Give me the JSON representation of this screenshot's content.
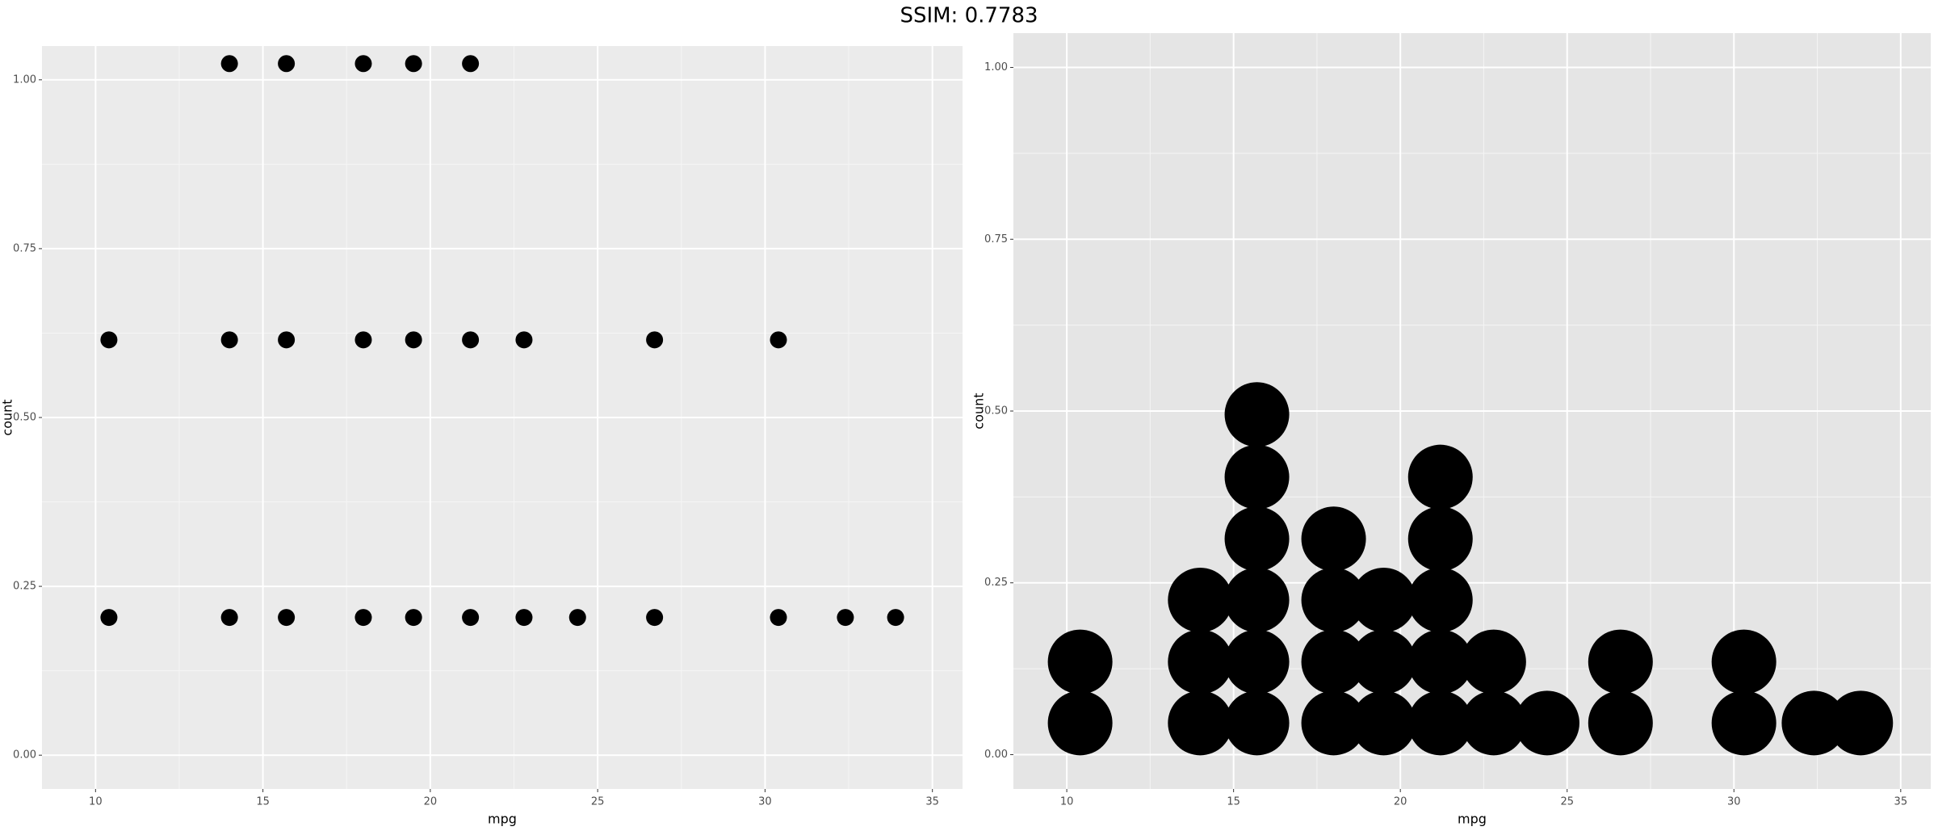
{
  "title": "SSIM: 0.7783",
  "chart_data": [
    {
      "type": "scatter",
      "x_label": "mpg",
      "y_label": "count",
      "color": "#000000",
      "x": [
        14.0,
        15.7,
        18.0,
        19.5,
        21.2,
        10.4,
        14.0,
        15.7,
        18.0,
        19.5,
        21.2,
        22.8,
        26.7,
        30.4,
        10.4,
        14.0,
        15.7,
        18.0,
        19.5,
        21.2,
        22.8,
        24.4,
        26.7,
        30.4,
        32.4,
        33.9
      ],
      "y": [
        1.024,
        1.024,
        1.024,
        1.024,
        1.024,
        0.615,
        0.615,
        0.615,
        0.615,
        0.615,
        0.615,
        0.615,
        0.615,
        0.615,
        0.204,
        0.204,
        0.204,
        0.204,
        0.204,
        0.204,
        0.204,
        0.204,
        0.204,
        0.204,
        0.204,
        0.204
      ],
      "xlim": [
        8.4,
        35.9
      ],
      "ylim": [
        -0.05,
        1.05
      ],
      "xticks": [
        10,
        15,
        20,
        25,
        30,
        35
      ],
      "yticks": [
        {
          "value": 0,
          "label": "0.00"
        },
        {
          "value": 0.25,
          "label": "0.25"
        },
        {
          "value": 0.5,
          "label": "0.50"
        },
        {
          "value": 0.75,
          "label": "0.75"
        },
        {
          "value": 1,
          "label": "1.00"
        }
      ],
      "grid": true
    },
    {
      "type": "scatter",
      "x_label": "mpg",
      "y_label": "count",
      "color": "#000000",
      "x": [
        10.4,
        10.4,
        14.0,
        14.0,
        14.0,
        15.7,
        15.7,
        15.7,
        15.7,
        15.7,
        15.7,
        18.0,
        18.0,
        18.0,
        18.0,
        19.5,
        19.5,
        19.5,
        21.2,
        21.2,
        21.2,
        21.2,
        21.2,
        22.8,
        22.8,
        24.4,
        26.6,
        26.6,
        30.3,
        30.3,
        32.4,
        33.8
      ],
      "y": [
        0.135,
        0.046,
        0.225,
        0.135,
        0.046,
        0.495,
        0.404,
        0.314,
        0.225,
        0.135,
        0.046,
        0.314,
        0.225,
        0.135,
        0.046,
        0.225,
        0.135,
        0.046,
        0.404,
        0.314,
        0.225,
        0.135,
        0.046,
        0.135,
        0.046,
        0.046,
        0.135,
        0.046,
        0.135,
        0.046,
        0.046,
        0.046
      ],
      "xlim": [
        8.4,
        35.9
      ],
      "ylim": [
        -0.05,
        1.05
      ],
      "xticks": [
        10,
        15,
        20,
        25,
        30,
        35
      ],
      "yticks": [
        {
          "value": 0,
          "label": "0.00"
        },
        {
          "value": 0.25,
          "label": "0.25"
        },
        {
          "value": 0.5,
          "label": "0.50"
        },
        {
          "value": 0.75,
          "label": "0.75"
        },
        {
          "value": 1,
          "label": "1.00"
        }
      ],
      "grid": true
    }
  ]
}
